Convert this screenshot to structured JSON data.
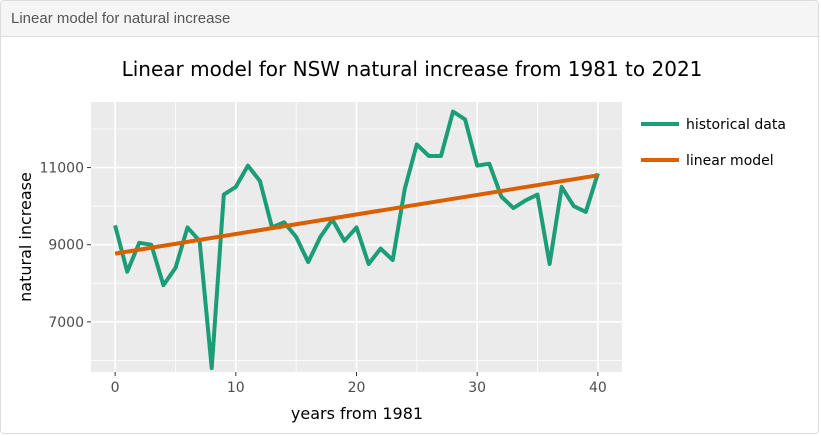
{
  "card": {
    "header_title": "Linear model for natural increase"
  },
  "colors": {
    "historical": "#1b9e77",
    "linear": "#d95f02",
    "panel": "#ebebeb",
    "grid": "#ffffff"
  },
  "chart_data": {
    "type": "line",
    "title": "Linear model for NSW natural increase from 1981 to 2021",
    "xlabel": "years from 1981",
    "ylabel": "natural increase",
    "xlim": [
      -2,
      42
    ],
    "ylim": [
      5700,
      12700
    ],
    "x_ticks": [
      0,
      10,
      20,
      30,
      40
    ],
    "x_tick_labels": [
      "0",
      "10",
      "20",
      "30",
      "40"
    ],
    "y_ticks": [
      7000,
      9000,
      11000
    ],
    "y_tick_labels": [
      "7000",
      "9000",
      "11000"
    ],
    "legend_position": "right",
    "series": [
      {
        "name": "historical data",
        "x": [
          0,
          1,
          2,
          3,
          4,
          5,
          6,
          7,
          8,
          9,
          10,
          11,
          12,
          13,
          14,
          15,
          16,
          17,
          18,
          19,
          20,
          21,
          22,
          23,
          24,
          25,
          26,
          27,
          28,
          29,
          30,
          31,
          32,
          33,
          34,
          35,
          36,
          37,
          38,
          39,
          40
        ],
        "values": [
          9500,
          8300,
          9050,
          9000,
          7950,
          8400,
          9450,
          9100,
          5800,
          10300,
          10500,
          11050,
          10650,
          9450,
          9580,
          9200,
          8550,
          9200,
          9650,
          9100,
          9450,
          8500,
          8900,
          8600,
          10450,
          11600,
          11300,
          11300,
          12450,
          12250,
          11050,
          11100,
          10250,
          9950,
          10150,
          10300,
          8500,
          10500,
          10000,
          9850,
          10850
        ]
      },
      {
        "name": "linear model",
        "x": [
          0,
          40
        ],
        "values": [
          8770,
          10800
        ]
      }
    ]
  }
}
